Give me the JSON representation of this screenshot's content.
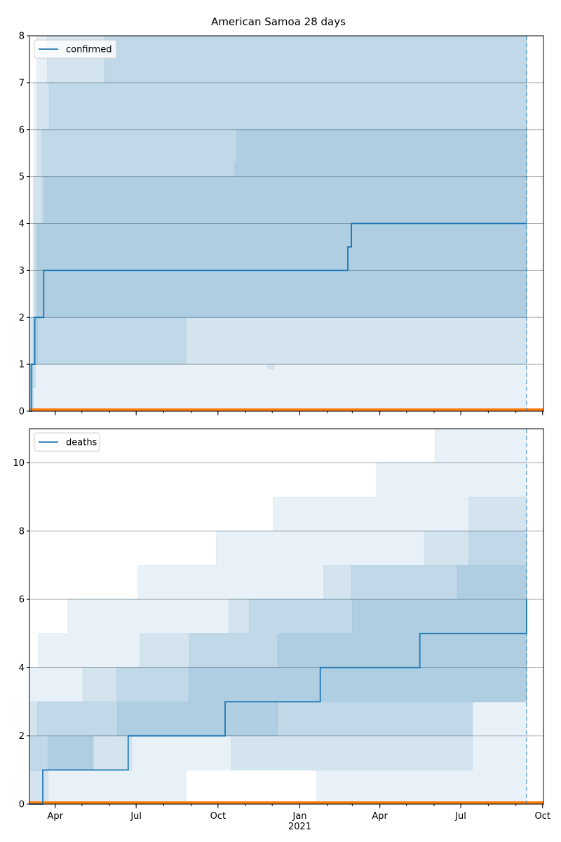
{
  "title": "American Samoa 28 days",
  "colors": {
    "series": "#1f77b4",
    "band": "#1f77b4",
    "baseline": "#ff7f0e",
    "grid": "#b0b0b0",
    "axis": "#000000"
  },
  "x_axis": {
    "ticks": [
      {
        "date": "2020-04-01",
        "label": "Apr",
        "sub": ""
      },
      {
        "date": "2020-07-01",
        "label": "Jul",
        "sub": ""
      },
      {
        "date": "2020-10-01",
        "label": "Oct",
        "sub": ""
      },
      {
        "date": "2021-01-01",
        "label": "Jan",
        "sub": "2021"
      },
      {
        "date": "2021-04-01",
        "label": "Apr",
        "sub": ""
      },
      {
        "date": "2021-07-01",
        "label": "Jul",
        "sub": ""
      },
      {
        "date": "2021-10-01",
        "label": "Oct",
        "sub": ""
      }
    ]
  },
  "chart_data": [
    {
      "type": "line",
      "legend": "confirmed",
      "legend_position": "upper-left",
      "grid": "horizontal",
      "xlim": [
        "2020-03-03",
        "2021-10-02"
      ],
      "ylim": [
        0,
        8
      ],
      "yticks": [
        0,
        1,
        2,
        3,
        4,
        5,
        6,
        7,
        8
      ],
      "forecast_marker": "2021-09-13",
      "series": [
        {
          "name": "confirmed",
          "steps": [
            [
              "2020-03-03",
              0
            ],
            [
              "2020-03-05",
              1
            ],
            [
              "2020-03-09",
              2
            ],
            [
              "2020-03-19",
              3
            ],
            [
              "2021-02-24",
              3.5
            ],
            [
              "2021-02-28",
              4
            ],
            [
              "2021-09-13",
              4
            ]
          ]
        }
      ],
      "bands": [
        {
          "lower": [
            [
              "2020-03-03",
              0
            ],
            [
              "2020-03-10",
              0
            ],
            [
              "2020-11-25",
              0
            ],
            [
              "2021-09-13",
              0
            ]
          ],
          "upper": [
            [
              "2020-03-03",
              1
            ],
            [
              "2020-03-08",
              7
            ],
            [
              "2020-03-11",
              8
            ],
            [
              "2021-09-13",
              8
            ]
          ]
        },
        {
          "lower": [
            [
              "2020-03-03",
              0
            ],
            [
              "2020-03-06",
              0.5
            ],
            [
              "2020-03-10",
              1
            ],
            [
              "2020-08-26",
              1
            ],
            [
              "2020-11-26",
              0.9
            ],
            [
              "2020-12-03",
              1
            ],
            [
              "2021-09-13",
              1
            ]
          ],
          "upper": [
            [
              "2020-03-03",
              1
            ],
            [
              "2020-03-07",
              5
            ],
            [
              "2020-03-12",
              7
            ],
            [
              "2020-03-23",
              8
            ],
            [
              "2021-09-13",
              8
            ]
          ]
        },
        {
          "lower": [
            [
              "2020-03-03",
              0
            ],
            [
              "2020-03-07",
              1
            ],
            [
              "2020-03-12",
              2
            ],
            [
              "2020-08-29",
              2
            ],
            [
              "2021-09-13",
              2
            ]
          ],
          "upper": [
            [
              "2020-03-03",
              2
            ],
            [
              "2020-03-10",
              4
            ],
            [
              "2020-03-17",
              6
            ],
            [
              "2020-03-25",
              7
            ],
            [
              "2020-05-26",
              8
            ],
            [
              "2021-09-13",
              8
            ]
          ]
        },
        {
          "lower": [
            [
              "2020-03-03",
              0
            ],
            [
              "2020-03-07",
              1
            ],
            [
              "2020-03-12",
              1
            ],
            [
              "2020-08-26",
              2
            ],
            [
              "2021-09-13",
              2
            ]
          ],
          "upper": [
            [
              "2020-03-03",
              2
            ],
            [
              "2020-03-12",
              4
            ],
            [
              "2020-03-20",
              5
            ],
            [
              "2020-10-20",
              5.3
            ],
            [
              "2020-10-22",
              6
            ],
            [
              "2021-09-13",
              6
            ]
          ]
        }
      ]
    },
    {
      "type": "line",
      "legend": "deaths",
      "legend_position": "upper-left",
      "grid": "horizontal",
      "xlim": [
        "2020-03-03",
        "2021-10-02"
      ],
      "ylim": [
        0,
        11
      ],
      "yticks": [
        0,
        2,
        4,
        6,
        8,
        10
      ],
      "forecast_marker": "2021-09-13",
      "series": [
        {
          "name": "deaths",
          "steps": [
            [
              "2020-03-03",
              0
            ],
            [
              "2020-03-18",
              1
            ],
            [
              "2020-06-22",
              2
            ],
            [
              "2020-10-09",
              3
            ],
            [
              "2021-01-24",
              4
            ],
            [
              "2021-05-16",
              5
            ],
            [
              "2021-09-09",
              5
            ],
            [
              "2021-09-13",
              6
            ]
          ]
        }
      ],
      "bands": [
        {
          "lower": [
            [
              "2020-03-03",
              0
            ],
            [
              "2020-08-25",
              0
            ],
            [
              "2020-08-26",
              1
            ],
            [
              "2021-01-19",
              1
            ],
            [
              "2021-01-20",
              0
            ],
            [
              "2021-09-13",
              0
            ]
          ],
          "upper": [
            [
              "2020-03-03",
              4
            ],
            [
              "2020-03-13",
              5
            ],
            [
              "2020-04-15",
              6
            ],
            [
              "2020-07-03",
              7
            ],
            [
              "2020-09-29",
              8
            ],
            [
              "2020-12-02",
              9
            ],
            [
              "2021-03-28",
              10
            ],
            [
              "2021-06-02",
              11
            ],
            [
              "2021-09-13",
              11
            ]
          ]
        },
        {
          "lower": [
            [
              "2020-03-03",
              1
            ],
            [
              "2020-03-24",
              1
            ],
            [
              "2020-05-13",
              1
            ],
            [
              "2020-05-14",
              2
            ],
            [
              "2021-03-01",
              2
            ],
            [
              "2021-03-02",
              1
            ],
            [
              "2021-07-13",
              1
            ],
            [
              "2021-07-14",
              3
            ],
            [
              "2021-09-13",
              3
            ]
          ],
          "upper": [
            [
              "2020-03-03",
              3
            ],
            [
              "2020-03-17",
              3
            ],
            [
              "2020-06-09",
              4
            ],
            [
              "2020-07-05",
              5
            ],
            [
              "2020-11-05",
              6
            ],
            [
              "2021-01-28",
              7
            ],
            [
              "2021-05-21",
              8
            ],
            [
              "2021-09-13",
              8
            ]
          ]
        },
        {
          "lower": [
            [
              "2020-03-03",
              1
            ],
            [
              "2020-03-24",
              1
            ],
            [
              "2020-05-13",
              2
            ],
            [
              "2020-10-15",
              2
            ],
            [
              "2020-10-16",
              1
            ],
            [
              "2021-03-01",
              2
            ],
            [
              "2021-07-14",
              3
            ],
            [
              "2021-09-13",
              3
            ]
          ],
          "upper": [
            [
              "2020-03-03",
              2
            ],
            [
              "2020-03-12",
              3
            ],
            [
              "2020-05-02",
              4
            ],
            [
              "2020-08-30",
              5
            ],
            [
              "2020-10-13",
              6
            ],
            [
              "2021-02-28",
              7
            ],
            [
              "2021-07-10",
              9
            ],
            [
              "2021-09-13",
              9
            ]
          ]
        },
        {
          "lower": [
            [
              "2020-03-03",
              0
            ],
            [
              "2020-03-24",
              1
            ],
            [
              "2020-05-13",
              1
            ],
            [
              "2020-06-26",
              2
            ],
            [
              "2020-10-15",
              2
            ],
            [
              "2020-12-07",
              3
            ],
            [
              "2021-02-28",
              3
            ],
            [
              "2021-02-29",
              3
            ],
            [
              "2021-09-13",
              3
            ]
          ],
          "upper": [
            [
              "2020-03-03",
              1
            ],
            [
              "2020-03-24",
              2
            ],
            [
              "2020-06-10",
              3
            ],
            [
              "2020-08-29",
              4
            ],
            [
              "2020-12-07",
              5
            ],
            [
              "2021-03-01",
              6
            ],
            [
              "2021-06-27",
              7
            ],
            [
              "2021-09-13",
              7
            ]
          ]
        }
      ]
    }
  ]
}
